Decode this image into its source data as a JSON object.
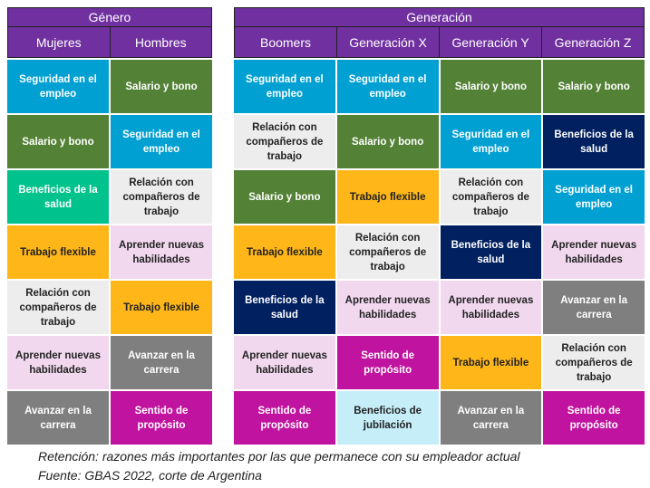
{
  "colors": {
    "Seguridad en el empleo": "#00a0d2",
    "Salario y bono": "#538135",
    "Beneficios de la salud_g": "#00c28c",
    "Beneficios de la salud": "#002060",
    "Relación con compañeros de trabajo": "#ededed",
    "Trabajo flexible": "#ffb619",
    "Aprender nuevas habilidades": "#f2d8ef",
    "Avanzar en la carrera": "#7f7f7f",
    "Sentido de propósito": "#c0139f",
    "Beneficios de jubilación": "#c6eef9"
  },
  "genero": {
    "title": "Género",
    "columns": [
      {
        "label": "Mujeres",
        "items": [
          "Seguridad en el empleo",
          "Salario y bono",
          "Beneficios de la salud",
          "Trabajo flexible",
          "Relación con compañeros de trabajo",
          "Aprender nuevas habilidades",
          "Avanzar en la carrera"
        ]
      },
      {
        "label": "Hombres",
        "items": [
          "Salario y bono",
          "Seguridad en el empleo",
          "Relación con compañeros de trabajo",
          "Aprender nuevas habilidades",
          "Trabajo flexible",
          "Avanzar en la carrera",
          "Sentido de propósito"
        ]
      }
    ]
  },
  "generacion": {
    "title": "Generación",
    "columns": [
      {
        "label": "Boomers",
        "items": [
          "Seguridad en el empleo",
          "Relación con compañeros de trabajo",
          "Salario y bono",
          "Trabajo flexible",
          "Beneficios de la salud",
          "Aprender nuevas habilidades",
          "Sentido de propósito"
        ]
      },
      {
        "label": "Generación X",
        "items": [
          "Seguridad en el empleo",
          "Salario y bono",
          "Trabajo flexible",
          "Relación con compañeros de trabajo",
          "Aprender nuevas habilidades",
          "Sentido de propósito",
          "Beneficios de jubilación"
        ]
      },
      {
        "label": "Generación Y",
        "items": [
          "Salario y bono",
          "Seguridad en el empleo",
          "Relación con compañeros de trabajo",
          "Beneficios de la salud",
          "Aprender nuevas habilidades",
          "Trabajo flexible",
          "Avanzar en la carrera"
        ]
      },
      {
        "label": "Generación Z",
        "items": [
          "Salario y bono",
          "Beneficios de la salud",
          "Seguridad en el empleo",
          "Aprender nuevas habilidades",
          "Avanzar en la carrera",
          "Relación con compañeros de trabajo",
          "Sentido de propósito"
        ]
      }
    ]
  },
  "caption": {
    "line1": "Retención: razones más importantes por las que permanece con su empleador actual",
    "line2": "Fuente: GBAS 2022, corte de Argentina"
  }
}
